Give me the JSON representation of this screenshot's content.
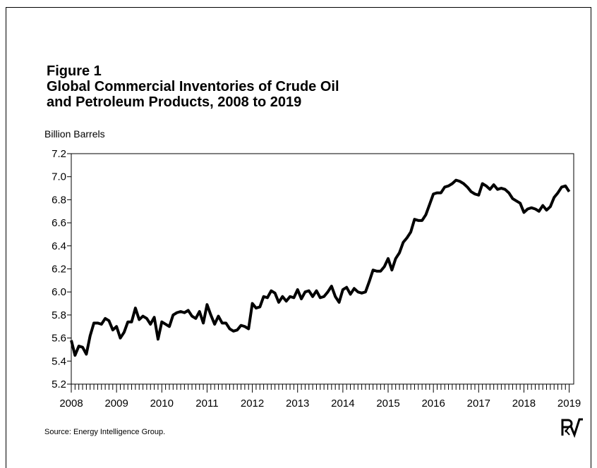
{
  "chart_data": {
    "type": "line",
    "figure_label": "Figure 1",
    "title": [
      "Global Commercial Inventories of Crude Oil",
      "and Petroleum Products, 2008 to 2019"
    ],
    "y_label": "Billion Barrels",
    "source": "Source: Energy Intelligence Group.",
    "xlim": [
      2008,
      2019.1
    ],
    "xticks": [
      2008,
      2009,
      2010,
      2011,
      2012,
      2013,
      2014,
      2015,
      2016,
      2017,
      2018,
      2019
    ],
    "ylim": [
      5.2,
      7.2
    ],
    "yticks": [
      5.2,
      5.4,
      5.6,
      5.8,
      {
        "value": 6,
        "label": "6.0"
      },
      6.2,
      6.4,
      6.6,
      6.8,
      {
        "value": 7,
        "label": "7.0"
      },
      7.2
    ],
    "grid": false,
    "series": [
      {
        "color": "#000000",
        "x": [
          2008,
          2008.083,
          2008.167,
          2008.25,
          2008.333,
          2008.417,
          2008.5,
          2008.583,
          2008.667,
          2008.75,
          2008.833,
          2008.917,
          2009,
          2009.083,
          2009.167,
          2009.25,
          2009.333,
          2009.417,
          2009.5,
          2009.583,
          2009.667,
          2009.75,
          2009.833,
          2009.917,
          2010,
          2010.083,
          2010.167,
          2010.25,
          2010.333,
          2010.417,
          2010.5,
          2010.583,
          2010.667,
          2010.75,
          2010.833,
          2010.917,
          2011,
          2011.083,
          2011.167,
          2011.25,
          2011.333,
          2011.417,
          2011.5,
          2011.583,
          2011.667,
          2011.75,
          2011.833,
          2011.917,
          2012,
          2012.083,
          2012.167,
          2012.25,
          2012.333,
          2012.417,
          2012.5,
          2012.583,
          2012.667,
          2012.75,
          2012.833,
          2012.917,
          2013,
          2013.083,
          2013.167,
          2013.25,
          2013.333,
          2013.417,
          2013.5,
          2013.583,
          2013.667,
          2013.75,
          2013.833,
          2013.917,
          2014,
          2014.083,
          2014.167,
          2014.25,
          2014.333,
          2014.417,
          2014.5,
          2014.583,
          2014.667,
          2014.75,
          2014.833,
          2014.917,
          2015,
          2015.083,
          2015.167,
          2015.25,
          2015.333,
          2015.417,
          2015.5,
          2015.583,
          2015.667,
          2015.75,
          2015.833,
          2015.917,
          2016,
          2016.083,
          2016.167,
          2016.25,
          2016.333,
          2016.417,
          2016.5,
          2016.583,
          2016.667,
          2016.75,
          2016.833,
          2016.917,
          2017,
          2017.083,
          2017.167,
          2017.25,
          2017.333,
          2017.417,
          2017.5,
          2017.583,
          2017.667,
          2017.75,
          2017.833,
          2017.917,
          2018,
          2018.083,
          2018.167,
          2018.25,
          2018.333,
          2018.417,
          2018.5,
          2018.583,
          2018.667,
          2018.75,
          2018.833,
          2018.917,
          2019
        ],
        "values": [
          5.58,
          5.45,
          5.53,
          5.52,
          5.46,
          5.62,
          5.73,
          5.73,
          5.72,
          5.77,
          5.75,
          5.67,
          5.7,
          5.6,
          5.65,
          5.74,
          5.74,
          5.86,
          5.76,
          5.79,
          5.77,
          5.72,
          5.78,
          5.59,
          5.74,
          5.72,
          5.7,
          5.8,
          5.82,
          5.83,
          5.82,
          5.84,
          5.79,
          5.77,
          5.83,
          5.73,
          5.89,
          5.8,
          5.72,
          5.79,
          5.73,
          5.73,
          5.68,
          5.66,
          5.67,
          5.71,
          5.7,
          5.68,
          5.9,
          5.86,
          5.87,
          5.96,
          5.95,
          6.01,
          5.99,
          5.91,
          5.96,
          5.92,
          5.96,
          5.95,
          6.02,
          5.94,
          6.0,
          6.01,
          5.96,
          6.01,
          5.95,
          5.96,
          6.0,
          6.05,
          5.96,
          5.91,
          6.02,
          6.04,
          5.98,
          6.03,
          6.0,
          5.99,
          6.0,
          6.09,
          6.19,
          6.18,
          6.18,
          6.22,
          6.29,
          6.19,
          6.29,
          6.34,
          6.43,
          6.47,
          6.52,
          6.63,
          6.62,
          6.62,
          6.67,
          6.76,
          6.85,
          6.86,
          6.86,
          6.91,
          6.92,
          6.94,
          6.97,
          6.96,
          6.94,
          6.91,
          6.87,
          6.85,
          6.84,
          6.94,
          6.92,
          6.89,
          6.93,
          6.89,
          6.9,
          6.89,
          6.86,
          6.81,
          6.79,
          6.77,
          6.69,
          6.72,
          6.73,
          6.72,
          6.7,
          6.75,
          6.71,
          6.74,
          6.82,
          6.86,
          6.91,
          6.92,
          6.87
        ]
      }
    ]
  }
}
